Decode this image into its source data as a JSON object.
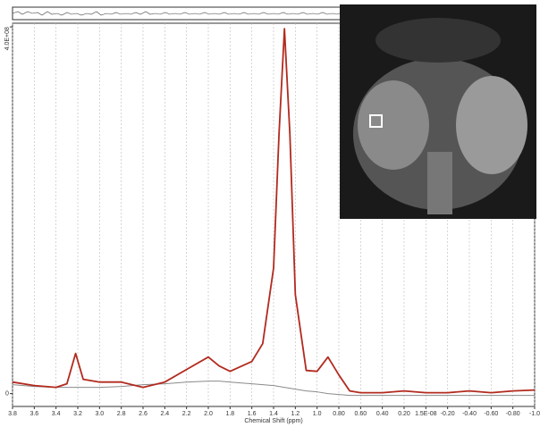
{
  "chart_data": {
    "type": "line",
    "x_label": "Chemical Shift (ppm)",
    "x": [
      3.8,
      3.6,
      3.4,
      3.3,
      3.22,
      3.15,
      3.0,
      2.8,
      2.6,
      2.4,
      2.2,
      2.0,
      1.9,
      1.8,
      1.6,
      1.5,
      1.4,
      1.35,
      1.3,
      1.25,
      1.2,
      1.1,
      1.0,
      0.9,
      0.8,
      0.7,
      0.6,
      0.4,
      0.2,
      0.0,
      -0.2,
      -0.4,
      -0.6,
      -0.8,
      -1.0
    ],
    "series": [
      {
        "color": "#b22a1e",
        "values": [
          12600000,
          8800000,
          6800000,
          10700000,
          43800000,
          15600000,
          12600000,
          12600000,
          6800000,
          12600000,
          26300000,
          39900000,
          30200000,
          24300000,
          35000000,
          54500000,
          137000000,
          283000000,
          398000000,
          283000000,
          108000000,
          25300000,
          24300000,
          39900000,
          20400000,
          2900000,
          1000000,
          1000000,
          2900000,
          1000000,
          1000000,
          2900000,
          1000000,
          2900000,
          3900000
        ]
      },
      {
        "color": "#8a8a8a",
        "values": [
          9700000,
          7800000,
          6800000,
          6800000,
          6800000,
          6800000,
          6800000,
          7800000,
          9700000,
          10700000,
          12600000,
          13600000,
          13600000,
          12600000,
          10700000,
          9700000,
          8800000,
          7800000,
          6800000,
          5800000,
          4900000,
          2900000,
          1900000,
          0,
          -1000000,
          -1900000,
          -1900000,
          -1900000,
          -1900000,
          -1900000,
          -1900000,
          -1900000,
          -1900000,
          -1900000,
          -1900000
        ]
      }
    ],
    "xlim": [
      3.8,
      -1.0
    ],
    "xticks": [
      3.8,
      3.6,
      3.4,
      3.2,
      {
        "value": 3.0,
        "label": "3.0"
      },
      2.8,
      2.6,
      2.4,
      2.2,
      {
        "value": 2.0,
        "label": "2.0"
      },
      1.8,
      1.6,
      1.4,
      1.2,
      {
        "value": 1.0,
        "label": "1.0"
      },
      {
        "value": 0.8,
        "label": "0.80"
      },
      {
        "value": 0.6,
        "label": "0.60"
      },
      {
        "value": 0.4,
        "label": "0.40"
      },
      {
        "value": 0.2,
        "label": "0.20"
      },
      {
        "value": 1.5e-08,
        "label": "1.5E-08"
      },
      {
        "value": -0.2,
        "label": "-0.20"
      },
      {
        "value": -0.4,
        "label": "-0.40"
      },
      {
        "value": -0.6,
        "label": "-0.60"
      },
      {
        "value": -0.8,
        "label": "-0.80"
      },
      {
        "value": -1.0,
        "label": "-1.0"
      }
    ],
    "ylim": [
      -14000000,
      404000000
    ],
    "yticks": [
      0,
      {
        "value": 400000000,
        "label": "4.0E+08"
      }
    ],
    "grid": true
  }
}
